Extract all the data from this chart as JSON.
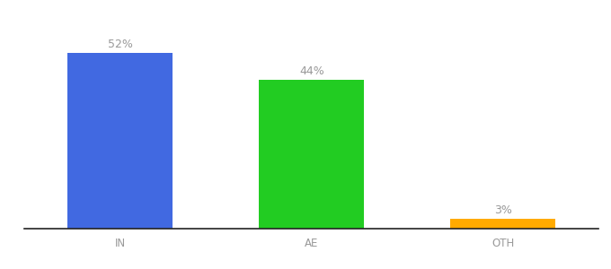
{
  "categories": [
    "IN",
    "AE",
    "OTH"
  ],
  "values": [
    52,
    44,
    3
  ],
  "bar_colors": [
    "#4169e1",
    "#22cc22",
    "#ffaa00"
  ],
  "labels": [
    "52%",
    "44%",
    "3%"
  ],
  "ylim": [
    0,
    58
  ],
  "background_color": "#ffffff",
  "label_color": "#999999",
  "label_fontsize": 9,
  "tick_fontsize": 8.5,
  "bar_width": 0.55
}
